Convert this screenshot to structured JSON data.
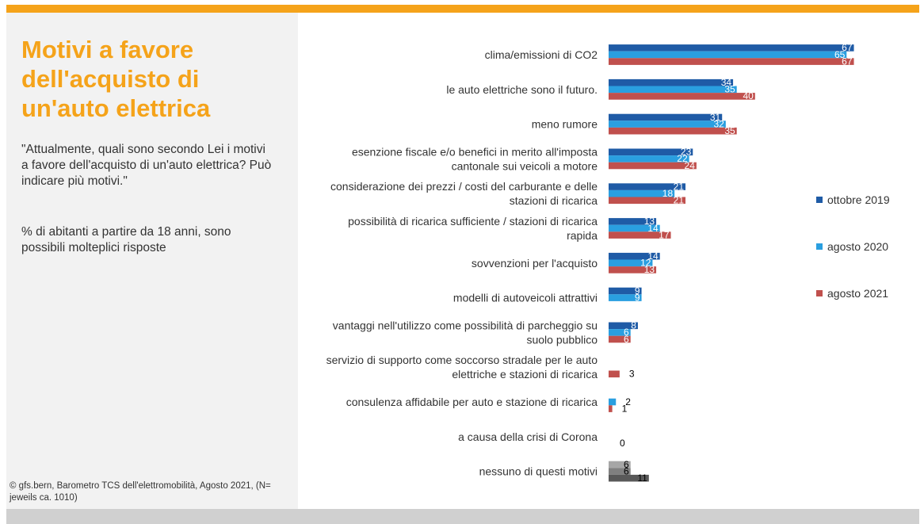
{
  "slide": {
    "title": "Motivi a favore\ndell'acquisto di\nun'auto elettrica",
    "question": "\"Attualmente, quali sono secondo Lei i motivi a favore dell'acquisto di un'auto elettrica? Può indicare più motivi.\"",
    "note": "% di abitanti a partire da 18 anni, sono possibili molteplici risposte",
    "source": "© gfs.bern, Barometro TCS dell'elettromobilità, Agosto 2021, (N= jeweils ca. 1010)"
  },
  "colors": {
    "accent": "#f5a31a",
    "title": "#f5a31a",
    "panel": "#f2f2f2",
    "footer": "#d0d0d0"
  },
  "chart_data": {
    "type": "bar",
    "orientation": "horizontal",
    "categories": [
      [
        "clima/emissioni di CO2"
      ],
      [
        "le auto elettriche sono il futuro."
      ],
      [
        "meno rumore"
      ],
      [
        "esenzione fiscale e/o benefici in merito all'imposta",
        "cantonale sui veicoli a motore"
      ],
      [
        "considerazione dei prezzi / costi del carburante e delle",
        "stazioni di ricarica"
      ],
      [
        "possibilità di ricarica sufficiente / stazioni di ricarica",
        "rapida"
      ],
      [
        "sovvenzioni per l'acquisto"
      ],
      [
        "modelli di autoveicoli attrattivi"
      ],
      [
        "vantaggi nell'utilizzo come possibilità di parcheggio su",
        "suolo pubblico"
      ],
      [
        "servizio di supporto come soccorso stradale per le auto",
        "elettriche e stazioni di ricarica"
      ],
      [
        "consulenza affidabile per auto e stazione di ricarica"
      ],
      [
        "a causa della crisi di Corona"
      ],
      [
        "nessuno di questi motivi"
      ]
    ],
    "series": [
      {
        "name": "ottobre 2019",
        "color": "#1f5ba6",
        "values": [
          67,
          34,
          31,
          23,
          21,
          13,
          14,
          9,
          8,
          null,
          null,
          null,
          6
        ]
      },
      {
        "name": "agosto 2020",
        "color": "#2a9fe0",
        "values": [
          65,
          35,
          32,
          22,
          18,
          14,
          12,
          9,
          6,
          null,
          2,
          null,
          6
        ]
      },
      {
        "name": "agosto 2021",
        "color": "#c0504d",
        "values": [
          67,
          40,
          35,
          24,
          21,
          17,
          13,
          null,
          6,
          3,
          1,
          0,
          11
        ]
      }
    ],
    "neutral_colors": [
      "#a6a6a6",
      "#808080",
      "#595959"
    ],
    "neutral_category": 12,
    "legend_position": "right",
    "grid": false
  }
}
